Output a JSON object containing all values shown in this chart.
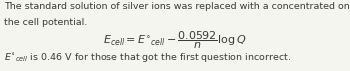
{
  "line1": "The standard solution of silver ions was replaced with a concentrated one resulting to Q = 0.5. Calculate",
  "line2": "the cell potential.",
  "formula": "$E_{cell} = E^{\\circ}{}_{cell} - \\dfrac{0.0592}{n} \\log Q$",
  "line3": "$E^{\\circ}{}_{cell}$ is 0.46 V for those that got the first question incorrect.",
  "bg_color": "#f5f5f0",
  "text_color": "#3a3a3a",
  "fontsize_body": 6.8,
  "fontsize_formula": 8.0,
  "fig_width": 3.5,
  "fig_height": 0.71,
  "dpi": 100
}
